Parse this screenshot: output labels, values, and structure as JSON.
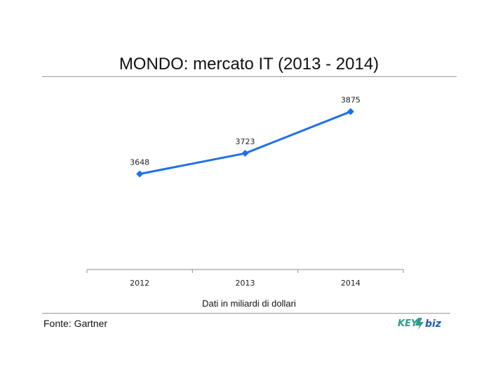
{
  "chart_data": {
    "type": "line",
    "title": "MONDO: mercato IT (2013 - 2014)",
    "categories": [
      "2012",
      "2013",
      "2014"
    ],
    "series": [
      {
        "values": [
          3648,
          3723,
          3875
        ],
        "color": "#1f6fe8"
      }
    ],
    "data_labels": [
      "3648",
      "3723",
      "3875"
    ],
    "xlabel": "Dati in miliardi di dollari",
    "ylabel": "",
    "ylim": [
      3300,
      3950
    ],
    "grid": false,
    "legend": "none"
  },
  "footer": {
    "source": "Fonte: Gartner",
    "logo_text": "KEY4biz",
    "logo_icon": "key4biz-logo-icon"
  }
}
